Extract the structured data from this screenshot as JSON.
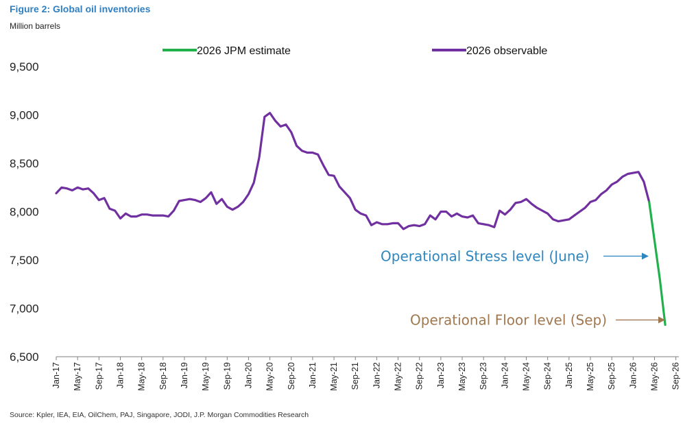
{
  "title": "Figure 2: Global oil inventories",
  "unit_label": "Million barrels",
  "source": "Source: Kpler, IEA, EIA, OilChem, PAJ, Singapore, JODI, J.P. Morgan Commodities Research",
  "colors": {
    "observable": "#7030a0",
    "estimate": "#21b04b",
    "stress": "#2e86c1",
    "floor": "#a07850",
    "axis": "#7f7f7f"
  },
  "chart_data": {
    "type": "line",
    "title": "Figure 2: Global oil inventories",
    "ylabel": "Million barrels",
    "xlabel": "",
    "ylim": [
      6500,
      9500
    ],
    "yticks": [
      6500,
      7000,
      7500,
      8000,
      8500,
      9000,
      9500
    ],
    "ytick_labels": [
      "6,500",
      "7,000",
      "7,500",
      "8,000",
      "8,500",
      "9,000",
      "9,500"
    ],
    "x_start": "Jan-17",
    "x_end": "Sep-26",
    "x_ticks": [
      "Jan-17",
      "May-17",
      "Sep-17",
      "Jan-18",
      "May-18",
      "Sep-18",
      "Jan-19",
      "May-19",
      "Sep-19",
      "Jan-20",
      "May-20",
      "Sep-20",
      "Jan-21",
      "May-21",
      "Sep-21",
      "Jan-22",
      "May-22",
      "Sep-22",
      "Jan-23",
      "May-23",
      "Sep-23",
      "Jan-24",
      "May-24",
      "Sep-24",
      "Jan-25",
      "May-25",
      "Sep-25",
      "Jan-26",
      "May-26",
      "Sep-26"
    ],
    "grid": false,
    "legend_position": "top",
    "series": [
      {
        "name": "2026 observable",
        "color": "#7030a0",
        "values": [
          8190,
          8250,
          8240,
          8220,
          8250,
          8230,
          8240,
          8190,
          8120,
          8140,
          8030,
          8010,
          7930,
          7980,
          7950,
          7950,
          7970,
          7970,
          7960,
          7960,
          7960,
          7950,
          8010,
          8110,
          8120,
          8130,
          8120,
          8100,
          8140,
          8200,
          8080,
          8130,
          8050,
          8020,
          8050,
          8100,
          8180,
          8300,
          8560,
          8980,
          9020,
          8940,
          8880,
          8900,
          8820,
          8680,
          8630,
          8610,
          8610,
          8590,
          8480,
          8380,
          8370,
          8260,
          8200,
          8140,
          8020,
          7980,
          7960,
          7860,
          7890,
          7870,
          7870,
          7880,
          7880,
          7820,
          7850,
          7860,
          7850,
          7870,
          7960,
          7920,
          8000,
          8000,
          7950,
          7980,
          7950,
          7940,
          7960,
          7880,
          7870,
          7860,
          7840,
          8010,
          7970,
          8020,
          8090,
          8100,
          8130,
          8080,
          8040,
          8010,
          7980,
          7920,
          7900,
          7910,
          7920,
          7960,
          8000,
          8040,
          8100,
          8120,
          8180,
          8220,
          8280,
          8310,
          8360,
          8390,
          8400,
          8410,
          8310,
          8100
        ]
      },
      {
        "name": "2026 JPM estimate",
        "color": "#21b04b",
        "values": [
          8100,
          7700,
          7300,
          6830
        ],
        "start_index": 111
      }
    ],
    "annotations": [
      {
        "text": "Operational Stress level (June)",
        "color": "#2e86c1",
        "y": 7540,
        "x_index": 113
      },
      {
        "text": "Operational Floor level (Sep)",
        "color": "#a07850",
        "y": 6880,
        "x_index": 114
      }
    ]
  }
}
